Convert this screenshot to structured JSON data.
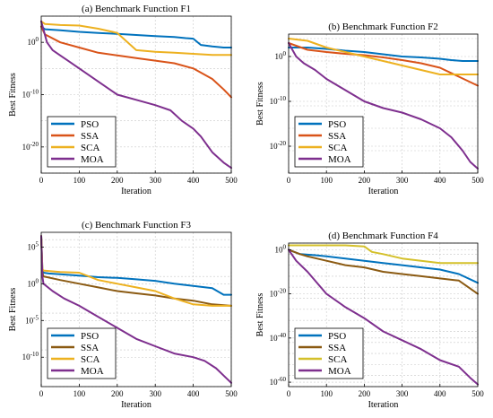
{
  "chart_data": [
    {
      "type": "line",
      "title": "(a) Benchmark Function F1",
      "xlabel": "Iteration",
      "ylabel": "Best Fitness",
      "xlim": [
        0,
        500
      ],
      "xticks": [
        0,
        100,
        200,
        300,
        400,
        500
      ],
      "yscale": "log",
      "ylim_exp": [
        -25,
        5
      ],
      "yticks": [
        {
          "exp": 0,
          "base": "10",
          "sup": "0"
        },
        {
          "exp": -10,
          "base": "10",
          "sup": "-10"
        },
        {
          "exp": -20,
          "base": "10",
          "sup": "-20"
        }
      ],
      "grid": true,
      "legend_position": "bottom-left",
      "series": [
        {
          "name": "PSO",
          "color": "#0072BD",
          "x": [
            0,
            10,
            50,
            100,
            150,
            200,
            250,
            300,
            350,
            380,
            400,
            420,
            450,
            480,
            500
          ],
          "log10_y": [
            3,
            2.5,
            2.3,
            2,
            1.8,
            1.6,
            1.4,
            1.2,
            1,
            0.8,
            0.7,
            -0.5,
            -0.8,
            -1,
            -1
          ]
        },
        {
          "name": "SSA",
          "color": "#D95319",
          "x": [
            0,
            10,
            50,
            100,
            150,
            200,
            250,
            300,
            350,
            400,
            450,
            480,
            500
          ],
          "log10_y": [
            3,
            1.5,
            0,
            -1,
            -2,
            -2.5,
            -3,
            -3.5,
            -4,
            -5,
            -7,
            -9,
            -10.5
          ]
        },
        {
          "name": "SCA",
          "color": "#EDB120",
          "x": [
            0,
            10,
            50,
            100,
            150,
            200,
            250,
            300,
            350,
            400,
            450,
            500
          ],
          "log10_y": [
            4,
            3.5,
            3.3,
            3.2,
            2.6,
            1.8,
            -1.5,
            -1.8,
            -2,
            -2.2,
            -2.4,
            -2.4
          ]
        },
        {
          "name": "MOA",
          "color": "#7E2F8E",
          "x": [
            0,
            15,
            30,
            50,
            70,
            100,
            130,
            160,
            200,
            250,
            300,
            340,
            370,
            400,
            420,
            450,
            480,
            500
          ],
          "log10_y": [
            4,
            0,
            -1.5,
            -2.5,
            -3.5,
            -5,
            -6.5,
            -8,
            -10,
            -11,
            -12,
            -13,
            -15,
            -16.5,
            -18,
            -21,
            -23,
            -24
          ]
        }
      ]
    },
    {
      "type": "line",
      "title": "(b) Benchmark Function F2",
      "xlabel": "Iteration",
      "ylabel": "Best Fitness",
      "xlim": [
        0,
        500
      ],
      "xticks": [
        0,
        100,
        200,
        300,
        400,
        500
      ],
      "yscale": "log",
      "ylim_exp": [
        -26,
        5
      ],
      "yticks": [
        {
          "exp": 0,
          "base": "10",
          "sup": "0"
        },
        {
          "exp": -10,
          "base": "10",
          "sup": "-10"
        },
        {
          "exp": -20,
          "base": "10",
          "sup": "-20"
        }
      ],
      "grid": true,
      "legend_position": "bottom-left",
      "series": [
        {
          "name": "PSO",
          "color": "#0072BD",
          "x": [
            0,
            50,
            100,
            150,
            200,
            250,
            300,
            350,
            400,
            430,
            460,
            490,
            500
          ],
          "log10_y": [
            2,
            2,
            1.7,
            1.3,
            1,
            0.5,
            0,
            -0.2,
            -0.5,
            -0.8,
            -1,
            -1,
            -1
          ]
        },
        {
          "name": "SSA",
          "color": "#D95319",
          "x": [
            0,
            50,
            100,
            150,
            200,
            250,
            300,
            350,
            400,
            450,
            500
          ],
          "log10_y": [
            3,
            1.5,
            1,
            0.6,
            0.3,
            -0.2,
            -0.8,
            -1.5,
            -2.5,
            -4.5,
            -6.5
          ]
        },
        {
          "name": "SCA",
          "color": "#EDB120",
          "x": [
            0,
            50,
            100,
            150,
            200,
            250,
            300,
            350,
            400,
            450,
            500
          ],
          "log10_y": [
            4,
            3.5,
            2,
            1,
            0,
            -1,
            -2,
            -3,
            -4,
            -4,
            -4
          ]
        },
        {
          "name": "MOA",
          "color": "#7E2F8E",
          "x": [
            0,
            20,
            40,
            70,
            100,
            150,
            200,
            250,
            300,
            350,
            400,
            430,
            460,
            480,
            500
          ],
          "log10_y": [
            3,
            0,
            -1.5,
            -3,
            -5,
            -7.5,
            -10,
            -11.5,
            -12.5,
            -14,
            -16,
            -18,
            -21,
            -23.5,
            -25
          ]
        }
      ]
    },
    {
      "type": "line",
      "title": "(c) Benchmark Function F3",
      "xlabel": "Iteration",
      "ylabel": "Best Fitness",
      "xlim": [
        0,
        500
      ],
      "xticks": [
        0,
        100,
        200,
        300,
        400,
        500
      ],
      "yscale": "log",
      "ylim_exp": [
        -14,
        7
      ],
      "yticks": [
        {
          "exp": 5,
          "base": "10",
          "sup": "5"
        },
        {
          "exp": 0,
          "base": "10",
          "sup": "0"
        },
        {
          "exp": -5,
          "base": "10",
          "sup": "-5"
        },
        {
          "exp": -10,
          "base": "10",
          "sup": "-10"
        }
      ],
      "grid": true,
      "legend_position": "bottom-left",
      "series": [
        {
          "name": "PSO",
          "color": "#0072BD",
          "x": [
            0,
            3,
            6,
            20,
            50,
            100,
            150,
            200,
            250,
            300,
            350,
            400,
            450,
            480,
            500
          ],
          "log10_y": [
            6.5,
            2,
            1.5,
            1.4,
            1.3,
            1.1,
            0.9,
            0.8,
            0.6,
            0.4,
            0,
            -0.3,
            -0.6,
            -1.5,
            -1.5
          ]
        },
        {
          "name": "SSA",
          "color": "#8B5A12",
          "x": [
            0,
            3,
            6,
            50,
            100,
            150,
            200,
            250,
            300,
            350,
            400,
            450,
            500
          ],
          "log10_y": [
            6.5,
            1.5,
            1,
            0.5,
            0,
            -0.5,
            -1,
            -1.3,
            -1.6,
            -2,
            -2.3,
            -2.8,
            -3
          ]
        },
        {
          "name": "SCA",
          "color": "#EDB120",
          "x": [
            0,
            3,
            6,
            50,
            100,
            150,
            200,
            250,
            300,
            350,
            400,
            450,
            500
          ],
          "log10_y": [
            6.5,
            2,
            1.8,
            1.6,
            1.5,
            0.5,
            0,
            -0.5,
            -1,
            -2,
            -2.8,
            -3,
            -3
          ]
        },
        {
          "name": "MOA",
          "color": "#7E2F8E",
          "x": [
            0,
            3,
            6,
            30,
            60,
            100,
            150,
            200,
            250,
            300,
            350,
            400,
            430,
            460,
            480,
            500
          ],
          "log10_y": [
            6.5,
            1,
            0,
            -1,
            -2,
            -3,
            -4.5,
            -6,
            -7.5,
            -8.5,
            -9.5,
            -10,
            -10.5,
            -11.5,
            -12.5,
            -13.5
          ]
        }
      ]
    },
    {
      "type": "line",
      "title": "(d) Benchmark Function F4",
      "xlabel": "Iteration",
      "ylabel": "Best Fitness",
      "xlim": [
        0,
        500
      ],
      "xticks": [
        0,
        100,
        200,
        300,
        400,
        500
      ],
      "yscale": "log",
      "ylim_exp": [
        -62,
        3
      ],
      "yticks": [
        {
          "exp": 0,
          "base": "10",
          "sup": "0"
        },
        {
          "exp": -20,
          "base": "10",
          "sup": "-20"
        },
        {
          "exp": -40,
          "base": "10",
          "sup": "-40"
        },
        {
          "exp": -60,
          "base": "10",
          "sup": "-60"
        }
      ],
      "grid": true,
      "legend_position": "bottom-left",
      "series": [
        {
          "name": "PSO",
          "color": "#0072BD",
          "x": [
            0,
            30,
            70,
            100,
            150,
            200,
            250,
            300,
            350,
            400,
            450,
            500
          ],
          "log10_y": [
            0,
            -2,
            -2.5,
            -3,
            -4,
            -5,
            -6,
            -7,
            -8,
            -9,
            -11,
            -15
          ]
        },
        {
          "name": "SSA",
          "color": "#8B5A12",
          "x": [
            0,
            30,
            50,
            100,
            150,
            200,
            250,
            300,
            350,
            400,
            450,
            500
          ],
          "log10_y": [
            0,
            -2,
            -3,
            -5,
            -7,
            -8,
            -10,
            -11,
            -12,
            -13,
            -14,
            -20
          ]
        },
        {
          "name": "SCA",
          "color": "#D4C02A",
          "x": [
            0,
            50,
            100,
            150,
            200,
            220,
            250,
            300,
            350,
            400,
            450,
            500
          ],
          "log10_y": [
            2,
            2,
            2,
            2,
            1.5,
            -1,
            -2,
            -4,
            -5,
            -6,
            -6,
            -6
          ]
        },
        {
          "name": "MOA",
          "color": "#7E2F8E",
          "x": [
            0,
            20,
            50,
            100,
            150,
            200,
            250,
            300,
            350,
            400,
            450,
            480,
            500
          ],
          "log10_y": [
            0,
            -5,
            -10,
            -20,
            -26,
            -31,
            -37,
            -41,
            -45,
            -50,
            -53,
            -58,
            -61
          ]
        }
      ]
    }
  ]
}
